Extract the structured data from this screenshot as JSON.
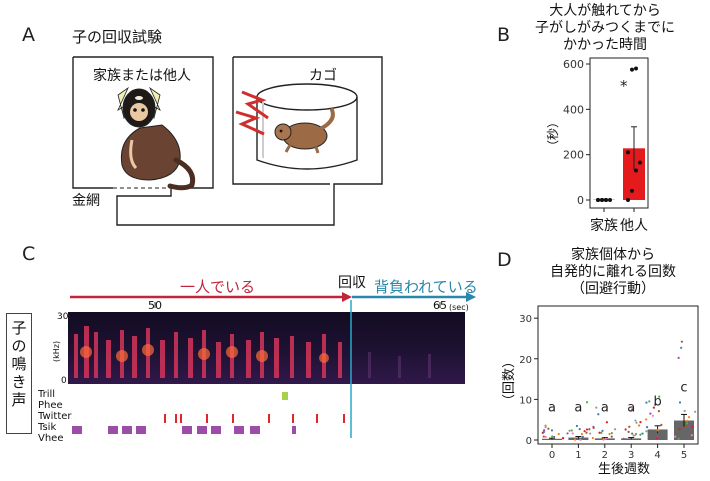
{
  "panels": {
    "A": {
      "letter": "A",
      "title": "子の回収試験",
      "room_left_label": "家族または他人",
      "room_right_label": "カゴ",
      "mesh_label": "金網"
    },
    "B": {
      "letter": "B",
      "title_lines": [
        "大人が触れてから",
        "子がしがみつくまでに",
        "かかった時間"
      ],
      "ylabel": "（秒）",
      "significance": "*"
    },
    "C": {
      "letter": "C",
      "phase_alone": "一人でいる",
      "phase_retrieval": "回収",
      "phase_carried": "背負われている",
      "time_ticks": [
        "50",
        "65"
      ],
      "time_unit": "(sec)",
      "freq_ticks": [
        "30",
        "0"
      ],
      "freq_unit": "(kHz)",
      "side_label": "子の鳴き声",
      "call_types": [
        "Trill",
        "Phee",
        "Twitter",
        "Tsik",
        "Vhee"
      ]
    },
    "D": {
      "letter": "D",
      "title_lines": [
        "家族個体から",
        "自発的に離れる回数",
        "（回避行動）"
      ],
      "ylabel": "（回数）",
      "xlabel": "生後週数"
    }
  },
  "chart_data": [
    {
      "type": "bar",
      "categories": [
        "家族",
        "他人"
      ],
      "values": [
        2,
        228
      ],
      "errors": [
        2,
        95
      ],
      "points": [
        [
          0,
          0,
          0,
          0,
          0,
          0,
          0
        ],
        [
          0,
          40,
          130,
          165,
          210,
          575,
          580
        ]
      ],
      "ylabel": "（秒）",
      "ylim": [
        0,
        600
      ],
      "yticks": [
        0,
        200,
        400,
        600
      ],
      "annotation": "*",
      "colors": [
        "#9a9a9a",
        "#e41a1c"
      ]
    },
    {
      "type": "bar",
      "categories": [
        "0",
        "1",
        "2",
        "3",
        "4",
        "5"
      ],
      "values": [
        0.3,
        0.6,
        0.4,
        0.4,
        2.6,
        4.8
      ],
      "errors": [
        0.15,
        0.25,
        0.2,
        0.2,
        0.9,
        1.5
      ],
      "letters": [
        "a",
        "a",
        "a",
        "a",
        "b",
        "c"
      ],
      "xlabel": "生後週数",
      "ylabel": "（回数）",
      "ylim": [
        0,
        33
      ],
      "yticks": [
        0,
        10,
        20,
        30
      ]
    }
  ],
  "colors": {
    "alone_arrow": "#c2243c",
    "carried_arrow": "#2a86ab",
    "retrieval_line": "#28a9c9",
    "twitter": "#e2262e",
    "phee": "#a8d04a",
    "vhee": "#9b4da8",
    "bar_other": "#e41a1c",
    "bar_weeks": "#666666"
  }
}
